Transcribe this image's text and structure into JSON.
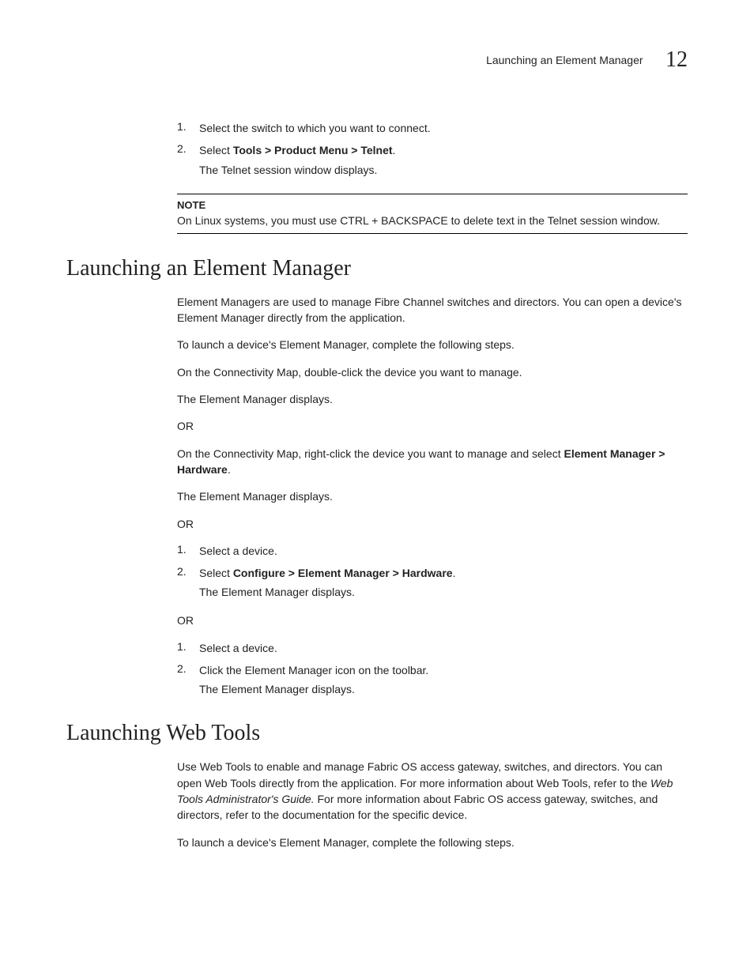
{
  "header": {
    "running_title": "Launching an Element Manager",
    "chapter_number": "12"
  },
  "top_steps": {
    "items": [
      {
        "num": "1.",
        "text": "Select the switch to which you want to connect."
      },
      {
        "num": "2.",
        "prefix": "Select ",
        "bold": "Tools > Product Menu > Telnet",
        "suffix": ".",
        "sub": "The Telnet session window displays."
      }
    ],
    "note": {
      "label": "NOTE",
      "body": "On Linux systems, you must use CTRL + BACKSPACE to delete text in the Telnet session window."
    }
  },
  "section1": {
    "heading": "Launching an Element Manager",
    "p1": "Element Managers are used to manage Fibre Channel switches and directors. You can open a device's Element Manager directly from the application.",
    "p2": "To launch a device's Element Manager, complete the following steps.",
    "p3": "On the Connectivity Map, double-click the device you want to manage.",
    "p4": "The Element Manager displays.",
    "or1": "OR",
    "p5_prefix": "On the Connectivity Map, right-click the device you want to manage and select ",
    "p5_bold": "Element Manager > Hardware",
    "p5_suffix": ".",
    "p6": "The Element Manager displays.",
    "or2": "OR",
    "listA": [
      {
        "num": "1.",
        "text": "Select a device."
      },
      {
        "num": "2.",
        "prefix": "Select ",
        "bold": "Configure > Element Manager > Hardware",
        "suffix": ".",
        "sub": "The Element Manager displays."
      }
    ],
    "or3": "OR",
    "listB": [
      {
        "num": "1.",
        "text": "Select a device."
      },
      {
        "num": "2.",
        "text": "Click the Element Manager icon on the toolbar.",
        "sub": "The Element Manager displays."
      }
    ]
  },
  "section2": {
    "heading": "Launching Web Tools",
    "p1_a": "Use Web Tools to enable and manage Fabric OS access gateway, switches, and directors. You can open Web Tools directly from the application. For more information about Web Tools, refer to the ",
    "p1_i": "Web Tools Administrator's Guide.",
    "p1_b": " For more information about Fabric OS access gateway, switches, and directors, refer to the documentation for the specific device.",
    "p2": "To launch a device's Element Manager, complete the following steps."
  }
}
